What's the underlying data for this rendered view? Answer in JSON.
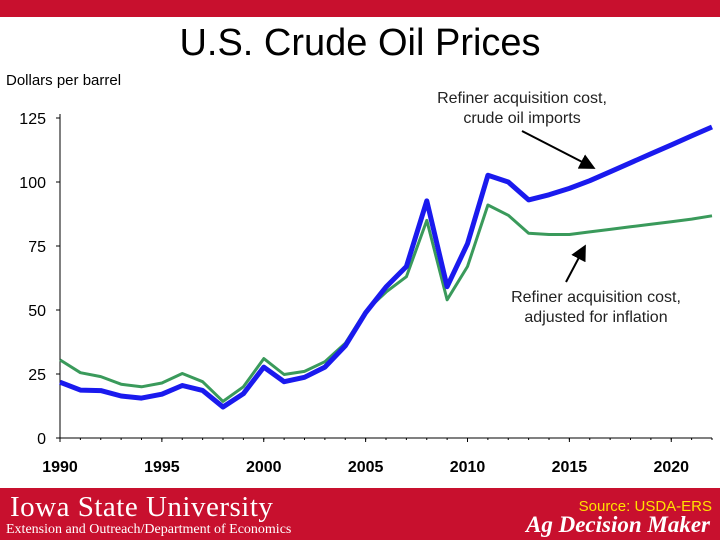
{
  "header": {
    "title": "U.S. Crude Oil Prices"
  },
  "chart_data": {
    "type": "line",
    "ylabel": "Dollars per barrel",
    "xlim": [
      1990,
      2022
    ],
    "ylim": [
      0,
      125
    ],
    "yticks": [
      0,
      25,
      50,
      75,
      100,
      125
    ],
    "xticks": [
      1990,
      1995,
      2000,
      2005,
      2010,
      2015,
      2020
    ],
    "grid": false,
    "x": [
      1990,
      1991,
      1992,
      1993,
      1994,
      1995,
      1996,
      1997,
      1998,
      1999,
      2000,
      2001,
      2002,
      2003,
      2004,
      2005,
      2006,
      2007,
      2008,
      2009,
      2010,
      2011,
      2012,
      2013,
      2014,
      2015,
      2016,
      2017,
      2018,
      2019,
      2020,
      2021,
      2022
    ],
    "series": [
      {
        "name": "Refiner acquisition cost, crude oil imports",
        "color": "#1a1aee",
        "values": [
          21.8,
          18.7,
          18.5,
          16.4,
          15.6,
          17.1,
          20.5,
          18.6,
          12.1,
          17.3,
          27.7,
          22.0,
          23.7,
          27.7,
          36.0,
          48.9,
          59.0,
          67.0,
          92.6,
          59.1,
          75.9,
          102.6,
          100.0,
          93.0,
          95.0,
          97.5,
          100.5,
          104.0,
          107.5,
          111.0,
          114.5,
          118.0,
          121.5
        ]
      },
      {
        "name": "Refiner acquisition cost, adjusted for inflation",
        "color": "#3a9a5b",
        "values": [
          30.5,
          25.5,
          24.0,
          21.0,
          20.0,
          21.5,
          25.2,
          22.0,
          14.3,
          20.0,
          31.0,
          24.8,
          26.0,
          29.8,
          37.0,
          49.5,
          57.0,
          63.0,
          85.0,
          54.0,
          67.0,
          91.0,
          87.0,
          80.0,
          79.5,
          79.5,
          80.5,
          81.5,
          82.5,
          83.5,
          84.5,
          85.5,
          86.8
        ]
      }
    ],
    "annotations": [
      {
        "text_lines": [
          "Refiner acquisition cost,",
          "crude oil imports"
        ],
        "points_to_series": 0
      },
      {
        "text_lines": [
          "Refiner acquisition cost,",
          "adjusted for inflation"
        ],
        "points_to_series": 1
      }
    ]
  },
  "footer": {
    "university": "Iowa State University",
    "department": "Extension and Outreach/Department of Economics",
    "source": "Source: USDA-ERS",
    "brand": "Ag Decision Maker",
    "bar_color": "#c8102e"
  }
}
